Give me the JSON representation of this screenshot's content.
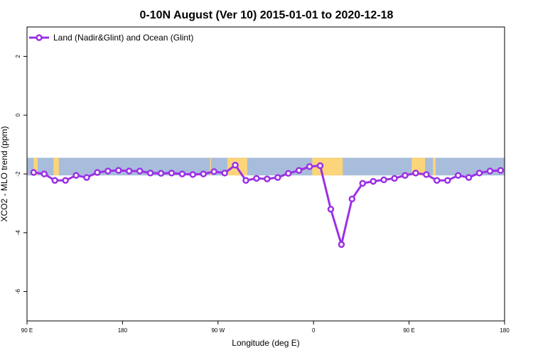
{
  "chart_data": {
    "type": "line",
    "title": "0-10N August (Ver 10)   2015-01-01 to 2020-12-18",
    "xlabel": "Longitude (deg E)",
    "ylabel": "XCO2 - MLO trend (ppm)",
    "xlim": [
      90,
      450
    ],
    "ylim": [
      -7,
      3
    ],
    "x_ticks": [
      90,
      162,
      234,
      306,
      378,
      450
    ],
    "x_tick_labels": [
      "90 E",
      "180",
      "90 W",
      "0",
      "90 E",
      "180"
    ],
    "y_ticks": [
      -6,
      -4,
      -2,
      0,
      2
    ],
    "y_tick_labels": [
      "-6",
      "-4",
      "-2",
      "0",
      "2"
    ],
    "grid": false,
    "legend_position": "top-left",
    "series": [
      {
        "name": "Land (Nadir&Glint) and Ocean (Glint)",
        "color": "#9b30e6",
        "x": [
          95,
          103,
          111,
          119,
          127,
          135,
          143,
          151,
          159,
          167,
          175,
          183,
          191,
          199,
          207,
          215,
          223,
          231,
          239,
          247,
          255,
          263,
          271,
          279,
          287,
          295,
          303,
          311,
          319,
          327,
          335,
          343,
          351,
          359,
          367,
          375,
          383,
          391,
          399,
          407,
          415,
          423,
          431,
          439,
          447
        ],
        "values": [
          -1.95,
          -2.0,
          -2.22,
          -2.22,
          -2.05,
          -2.12,
          -1.95,
          -1.9,
          -1.88,
          -1.9,
          -1.9,
          -1.97,
          -1.98,
          -1.97,
          -2.0,
          -2.02,
          -2.0,
          -1.92,
          -1.97,
          -1.7,
          -2.22,
          -2.15,
          -2.17,
          -2.12,
          -1.98,
          -1.88,
          -1.75,
          -1.72,
          -3.2,
          -4.4,
          -2.85,
          -2.32,
          -2.25,
          -2.2,
          -2.15,
          -2.05,
          -1.97,
          -2.02,
          -2.22,
          -2.22,
          -2.05,
          -2.12,
          -1.97,
          -1.9,
          -1.88
        ]
      }
    ],
    "background_band": {
      "y_range": [
        -2.05,
        -1.45
      ],
      "ocean_color": "#a8bddb",
      "land_color": "#fcd57a",
      "land_longitudes": [
        [
          95,
          98
        ],
        [
          110,
          114
        ],
        [
          228,
          228.8
        ],
        [
          241,
          256
        ],
        [
          305,
          328
        ],
        [
          380,
          390
        ],
        [
          396,
          398
        ]
      ]
    }
  }
}
